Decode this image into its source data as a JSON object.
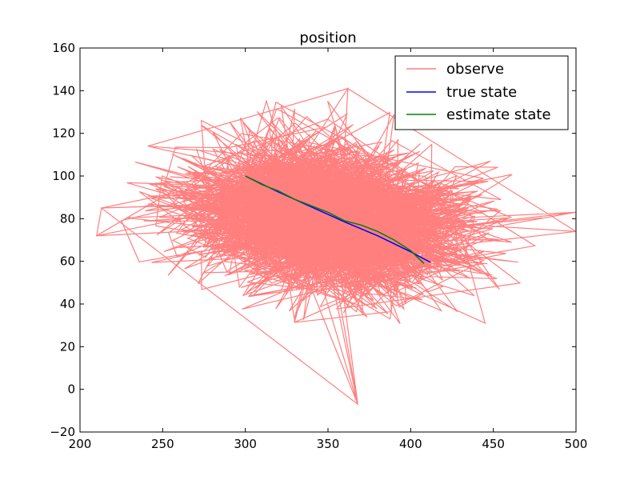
{
  "chart_data": {
    "type": "line",
    "title": "position",
    "xlabel": "",
    "ylabel": "",
    "xlim": [
      200,
      500
    ],
    "ylim": [
      -20,
      160
    ],
    "x_ticks": [
      200,
      250,
      300,
      350,
      400,
      450,
      500
    ],
    "y_ticks": [
      -20,
      0,
      20,
      40,
      60,
      80,
      100,
      120,
      140,
      160
    ],
    "grid": false,
    "legend": {
      "position": "top-right"
    },
    "colors": {
      "observe": "#ff7f7f",
      "true_state": "#0000ff",
      "estimate_state": "#008000"
    },
    "series": [
      {
        "name": "observe",
        "style": "noisy-cloud",
        "color": "#ff7f7f",
        "center": [
          350,
          80
        ],
        "spread": [
          65,
          18
        ],
        "notable_points": [
          {
            "x": 368,
            "y": -7
          },
          {
            "x": 213,
            "y": 85
          },
          {
            "x": 210,
            "y": 72
          },
          {
            "x": 500,
            "y": 83
          },
          {
            "x": 500,
            "y": 74
          },
          {
            "x": 362,
            "y": 141
          },
          {
            "x": 241,
            "y": 114
          }
        ]
      },
      {
        "name": "true state",
        "color": "#0000ff",
        "x": [
          300,
          320,
          340,
          360,
          380,
          400,
          412
        ],
        "y": [
          100,
          92.5,
          85.5,
          78.5,
          72,
          64.5,
          59.5
        ]
      },
      {
        "name": "estimate state",
        "color": "#008000",
        "x": [
          300,
          310,
          320,
          330,
          340,
          350,
          360,
          370,
          380,
          390,
          400,
          408
        ],
        "y": [
          100,
          96,
          93,
          89,
          86,
          83,
          79,
          77,
          74,
          70,
          65,
          59
        ]
      }
    ]
  }
}
